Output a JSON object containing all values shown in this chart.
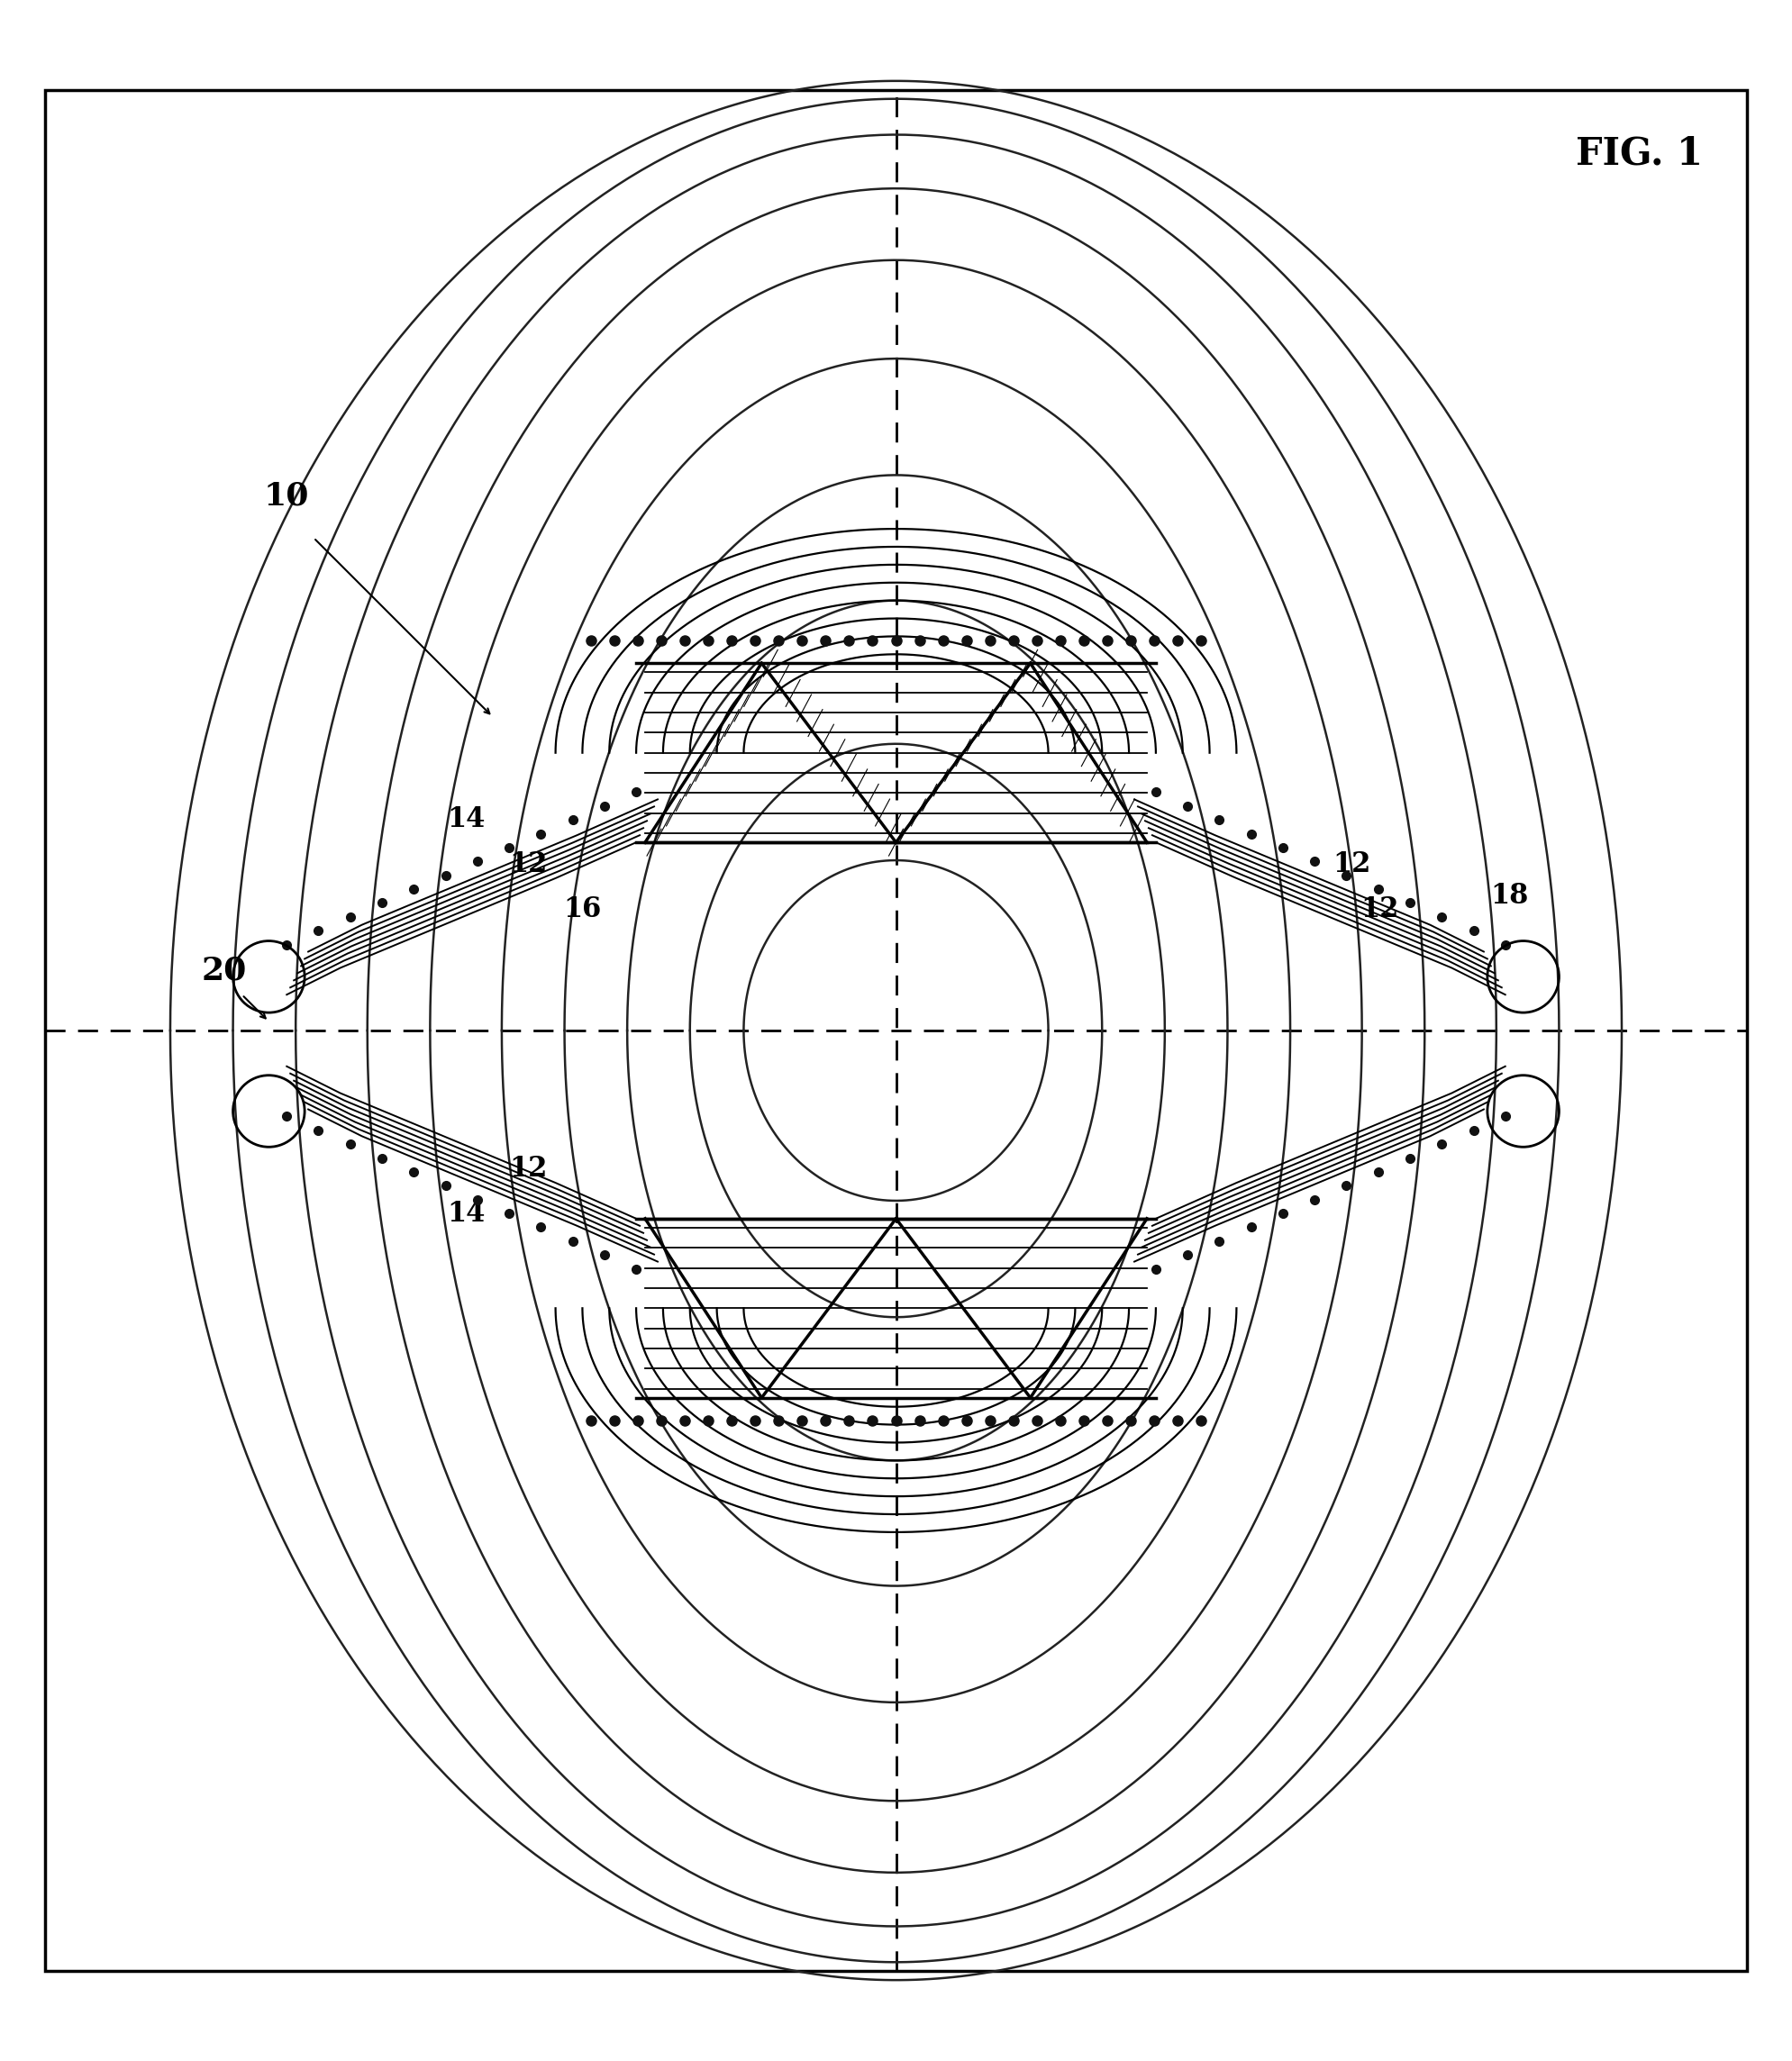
{
  "fig_label": "FIG. 1",
  "ref_10": "10",
  "ref_12": "12",
  "ref_14": "14",
  "ref_16": "16",
  "ref_18": "18",
  "ref_20": "20",
  "bg_color": "#ffffff",
  "line_color": "#000000",
  "device_color": "#555555",
  "hatch_color": "#333333",
  "dot_color": "#111111",
  "field_line_color": "#222222",
  "border_lw": 2.5,
  "field_lw": 1.8,
  "device_lw": 2.0
}
